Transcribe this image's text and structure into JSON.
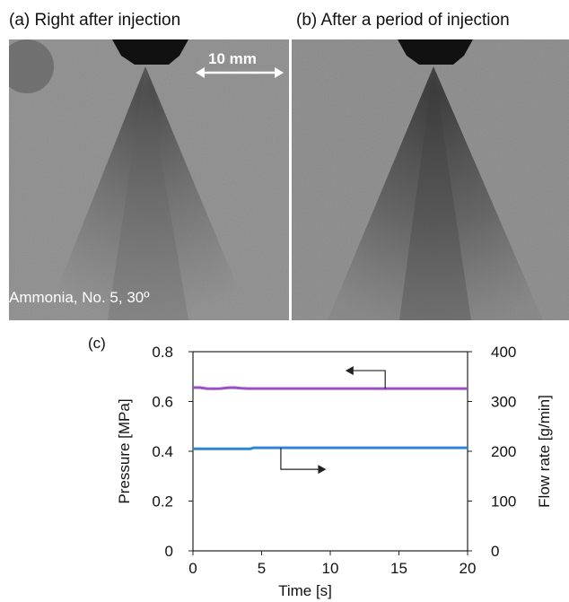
{
  "panels": [
    {
      "label": "(a)",
      "title": "Right after injection"
    },
    {
      "label": "(b)",
      "title": "After a period of injection"
    }
  ],
  "scale_bar": "10 mm",
  "caption": "Ammonia, No. 5, 30º",
  "chart_label": "(c)",
  "chart_data": {
    "type": "line",
    "xlabel": "Time [s]",
    "ylabel_left": "Pressure [MPa]",
    "ylabel_right": "Flow rate [g/min]",
    "xlim": [
      0,
      20
    ],
    "ylim_left": [
      0,
      0.8
    ],
    "ylim_right": [
      0,
      400
    ],
    "x_ticks": [
      "0",
      "5",
      "10",
      "15",
      "20"
    ],
    "y_ticks_left": [
      "0",
      "0.2",
      "0.4",
      "0.6",
      "0.8"
    ],
    "y_ticks_right": [
      "0",
      "100",
      "200",
      "300",
      "400"
    ],
    "series": [
      {
        "axis": "left",
        "color": "#9b4fc6",
        "x": [
          0,
          0.5,
          1,
          1.5,
          2,
          2.5,
          3,
          3.5,
          4,
          5,
          10,
          15,
          20
        ],
        "y": [
          0.656,
          0.656,
          0.652,
          0.651,
          0.652,
          0.655,
          0.656,
          0.653,
          0.652,
          0.652,
          0.652,
          0.652,
          0.652
        ]
      },
      {
        "axis": "right",
        "color": "#2f86d6",
        "x": [
          0,
          4.2,
          4.4,
          10,
          15,
          20
        ],
        "y": [
          205,
          205,
          207,
          207,
          207,
          207
        ]
      }
    ],
    "grid": false,
    "legend": "arrows"
  }
}
